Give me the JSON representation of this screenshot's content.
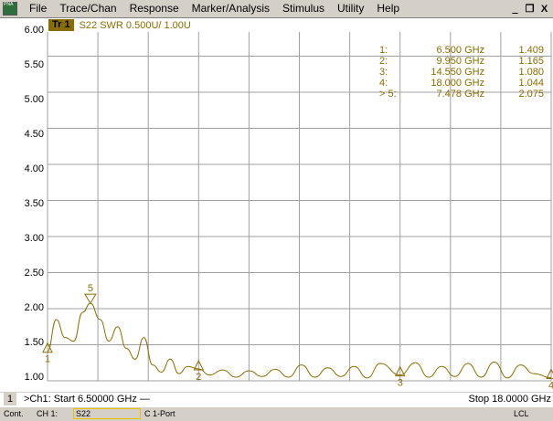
{
  "menu": {
    "app_icon_text": "PNA",
    "items": [
      "File",
      "Trace/Chan",
      "Response",
      "Marker/Analysis",
      "Stimulus",
      "Utility",
      "Help"
    ],
    "window_buttons": [
      "_",
      "ə",
      "X"
    ]
  },
  "trace": {
    "tag": "Tr 1",
    "label": "S22 SWR 0.500U/  1.00U"
  },
  "markers": [
    {
      "id": "1:",
      "freq": "6.500",
      "unit": "GHz",
      "value": "1.409"
    },
    {
      "id": "2:",
      "freq": "9.950",
      "unit": "GHz",
      "value": "1.165"
    },
    {
      "id": "3:",
      "freq": "14.550",
      "unit": "GHz",
      "value": "1.080"
    },
    {
      "id": "4:",
      "freq": "18.000",
      "unit": "GHz",
      "value": "1.044"
    },
    {
      "id": "> 5:",
      "freq": "7.478",
      "unit": "GHz",
      "value": "2.075"
    }
  ],
  "marker_labels": [
    "1",
    "2",
    "3",
    "4",
    "5"
  ],
  "chart_data": {
    "type": "line",
    "title": "S22 SWR 0.500U/  1.00U",
    "x_label": "GHz",
    "xlim": [
      6.5,
      18.0
    ],
    "ylim": [
      1.0,
      6.0
    ],
    "y_ticks": [
      "6.00",
      "5.50",
      "5.00",
      "4.50",
      "4.00",
      "3.50",
      "3.00",
      "2.50",
      "2.00",
      "1.50",
      "1.00"
    ],
    "grid": true,
    "series": [
      {
        "x": [
          6.5,
          6.7,
          6.9,
          7.1,
          7.3,
          7.478,
          7.7,
          7.9,
          8.1,
          8.3,
          8.5,
          8.7,
          8.9,
          9.1,
          9.3,
          9.5,
          9.7,
          9.95,
          10.2,
          10.5,
          10.8,
          11.1,
          11.4,
          11.7,
          12.0,
          12.3,
          12.6,
          12.9,
          13.2,
          13.5,
          13.8,
          14.1,
          14.55,
          14.9,
          15.2,
          15.5,
          15.8,
          16.1,
          16.4,
          16.7,
          17.0,
          17.3,
          17.6,
          18.0
        ],
        "y": [
          1.41,
          1.85,
          1.6,
          1.55,
          1.95,
          2.075,
          1.85,
          1.55,
          1.75,
          1.45,
          1.3,
          1.6,
          1.22,
          1.12,
          1.3,
          1.1,
          1.2,
          1.165,
          1.08,
          1.15,
          1.05,
          1.14,
          1.06,
          1.16,
          1.05,
          1.22,
          1.05,
          1.18,
          1.06,
          1.2,
          1.04,
          1.24,
          1.08,
          1.25,
          1.05,
          1.2,
          1.06,
          1.24,
          1.05,
          1.26,
          1.04,
          1.22,
          1.1,
          1.044
        ]
      }
    ]
  },
  "footer": {
    "channel_num": "1",
    "start_text": ">Ch1: Start  6.50000 GHz —",
    "stop_text": "Stop  18.0000 GHz",
    "status_cont": "Cont.",
    "status_ch": "CH 1:",
    "status_param": "S22",
    "status_cal": "C  1-Port",
    "status_lcl": "LCL"
  }
}
